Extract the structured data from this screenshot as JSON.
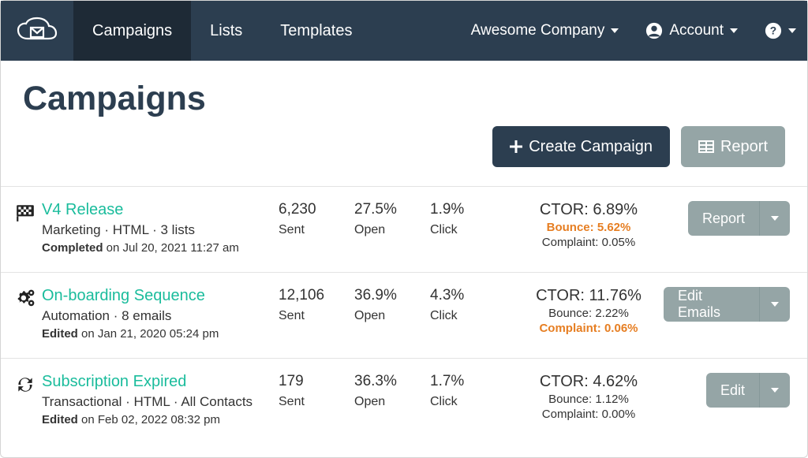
{
  "colors": {
    "navbar_bg": "#2c3e50",
    "navbar_active_bg": "#1e2a36",
    "accent_text": "#1abc9c",
    "warn_text": "#e67e22",
    "body_text": "#333333",
    "btn_primary_bg": "#2c3e50",
    "btn_secondary_bg": "#95a5a6",
    "border": "#e3e3e3"
  },
  "nav": {
    "links": [
      {
        "label": "Campaigns",
        "active": true
      },
      {
        "label": "Lists",
        "active": false
      },
      {
        "label": "Templates",
        "active": false
      }
    ],
    "company": "Awesome Company",
    "account_label": "Account"
  },
  "page": {
    "title": "Campaigns",
    "create_label": "Create Campaign",
    "report_label": "Report"
  },
  "stat_labels": {
    "sent": "Sent",
    "open": "Open",
    "click": "Click"
  },
  "campaigns": [
    {
      "icon": "flag",
      "title": "V4 Release",
      "meta": "Marketing · HTML · 3 lists",
      "status_strong": "Completed",
      "status_rest": " on Jul 20, 2021 11:27 am",
      "sent": "6,230",
      "open": "27.5%",
      "click": "1.9%",
      "ctor_label": "CTOR: ",
      "ctor_value": "6.89%",
      "bounce_label": "Bounce: ",
      "bounce_value": "5.62%",
      "bounce_warn": true,
      "complaint_label": "Complaint: ",
      "complaint_value": "0.05%",
      "complaint_warn": false,
      "action_label": "Report"
    },
    {
      "icon": "gear",
      "title": "On-boarding Sequence",
      "meta": "Automation · 8 emails",
      "status_strong": "Edited",
      "status_rest": " on Jan 21, 2020 05:24 pm",
      "sent": "12,106",
      "open": "36.9%",
      "click": "4.3%",
      "ctor_label": "CTOR: ",
      "ctor_value": "11.76%",
      "bounce_label": "Bounce: ",
      "bounce_value": "2.22%",
      "bounce_warn": false,
      "complaint_label": "Complaint: ",
      "complaint_value": "0.06%",
      "complaint_warn": true,
      "action_label": "Edit Emails"
    },
    {
      "icon": "refresh",
      "title": "Subscription Expired",
      "meta": "Transactional · HTML · All Contacts",
      "status_strong": "Edited",
      "status_rest": " on Feb 02, 2022 08:32 pm",
      "sent": "179",
      "open": "36.3%",
      "click": "1.7%",
      "ctor_label": "CTOR: ",
      "ctor_value": "4.62%",
      "bounce_label": "Bounce: ",
      "bounce_value": "1.12%",
      "bounce_warn": false,
      "complaint_label": "Complaint: ",
      "complaint_value": "0.00%",
      "complaint_warn": false,
      "action_label": "Edit"
    }
  ]
}
